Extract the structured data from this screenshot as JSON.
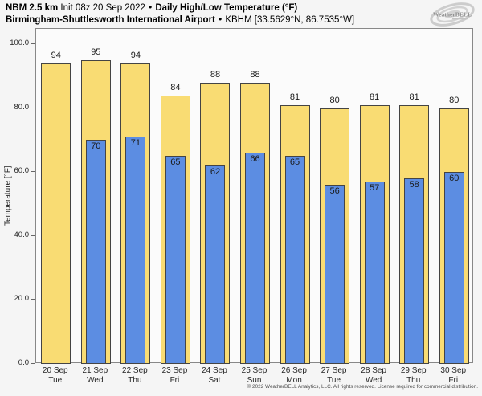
{
  "title": {
    "line1": {
      "model": "NBM 2.5 km",
      "init": "Init 08z 20 Sep 2022",
      "sep": "•",
      "product": "Daily High/Low Temperature (°F)"
    },
    "line2": {
      "station": "Birmingham-Shuttlesworth International Airport",
      "sep": "•",
      "station_id": "KBHM [33.5629°N, 86.7535°W]"
    }
  },
  "branding": {
    "logo_icon": "weatherbell-swirl-logo",
    "logo_text": "WeatherBELL"
  },
  "footer": {
    "copyright": "© 2022 WeatherBELL Analytics, LLC. All rights reserved. License required for commercial distribution."
  },
  "chart_data": {
    "type": "bar",
    "title": "NBM 2.5 km Daily High/Low Temperature (°F) — Birmingham-Shuttlesworth International Airport (KBHM)",
    "xlabel": "",
    "ylabel": "Temperature [°F]",
    "ylim": [
      0,
      105
    ],
    "yticks": [
      0,
      20,
      40,
      60,
      80,
      100
    ],
    "ytick_labels": [
      "0.0",
      "20.0",
      "40.0",
      "60.0",
      "80.0",
      "100.0"
    ],
    "grid": false,
    "legend_position": "none",
    "categories": [
      {
        "date": "20 Sep",
        "day": "Tue"
      },
      {
        "date": "21 Sep",
        "day": "Wed"
      },
      {
        "date": "22 Sep",
        "day": "Thu"
      },
      {
        "date": "23 Sep",
        "day": "Fri"
      },
      {
        "date": "24 Sep",
        "day": "Sat"
      },
      {
        "date": "25 Sep",
        "day": "Sun"
      },
      {
        "date": "26 Sep",
        "day": "Mon"
      },
      {
        "date": "27 Sep",
        "day": "Tue"
      },
      {
        "date": "28 Sep",
        "day": "Wed"
      },
      {
        "date": "29 Sep",
        "day": "Thu"
      },
      {
        "date": "30 Sep",
        "day": "Fri"
      }
    ],
    "series": [
      {
        "name": "Daily High",
        "color": "#f9dc73",
        "values": [
          94,
          95,
          94,
          84,
          88,
          88,
          81,
          80,
          81,
          81,
          80
        ]
      },
      {
        "name": "Daily Low",
        "color": "#5c8de2",
        "values": [
          null,
          70,
          71,
          65,
          62,
          66,
          65,
          56,
          57,
          58,
          60
        ]
      }
    ]
  },
  "colors": {
    "figure_background": "#f5f5f5",
    "plot_background": "#fbfbfb",
    "bar_border": "#444444",
    "high_bar": "#f9dc73",
    "low_bar": "#5c8de2",
    "spine": "#888888",
    "text": "#1a1a1a",
    "footer_text": "#4d4d4d"
  }
}
